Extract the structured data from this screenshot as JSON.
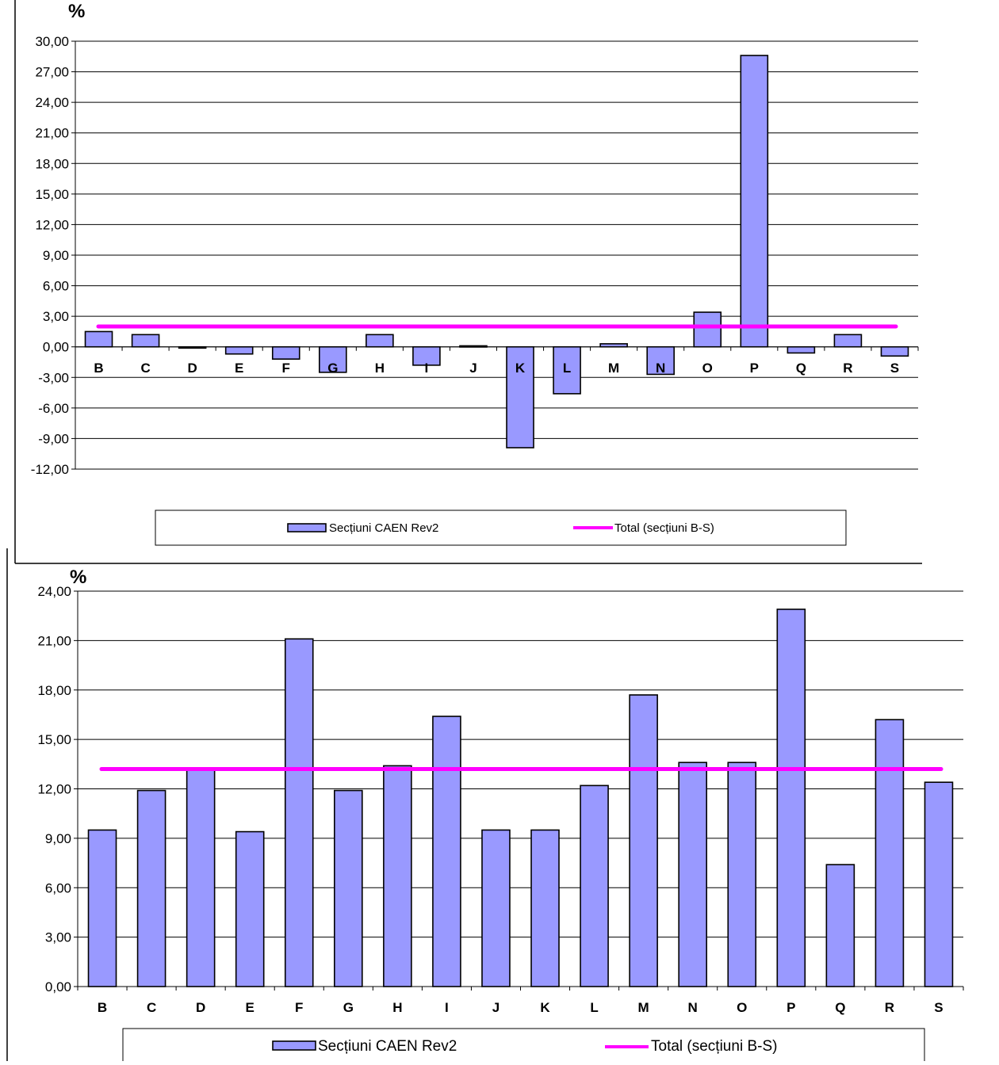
{
  "chart_data": [
    {
      "type": "bar",
      "ylabel": "%",
      "ylim": [
        -12,
        30
      ],
      "ytick_step": 3,
      "yticks": [
        "30,00",
        "27,00",
        "24,00",
        "21,00",
        "18,00",
        "15,00",
        "12,00",
        "9,00",
        "6,00",
        "3,00",
        "0,00",
        "-3,00",
        "-6,00",
        "-9,00",
        "-12,00"
      ],
      "grid": true,
      "legend_position": "bottom",
      "categories": [
        "B",
        "C",
        "D",
        "E",
        "F",
        "G",
        "H",
        "I",
        "J",
        "K",
        "L",
        "M",
        "N",
        "O",
        "P",
        "Q",
        "R",
        "S"
      ],
      "series": [
        {
          "name": "Secțiuni CAEN Rev2",
          "type": "bar",
          "values": [
            1.5,
            1.2,
            -0.1,
            -0.7,
            -1.2,
            -2.5,
            1.2,
            -1.8,
            0.1,
            -9.9,
            -4.6,
            0.3,
            -2.7,
            3.4,
            28.6,
            -0.6,
            1.2,
            -0.9
          ]
        },
        {
          "name": "Total (secțiuni B-S)",
          "type": "line",
          "value": 2.0
        }
      ],
      "colors": {
        "bar": "#9999ff",
        "line": "#ff00ff"
      }
    },
    {
      "type": "bar",
      "ylabel": "%",
      "ylim": [
        0,
        24
      ],
      "ytick_step": 3,
      "yticks": [
        "24,00",
        "21,00",
        "18,00",
        "15,00",
        "12,00",
        "9,00",
        "6,00",
        "3,00",
        "0,00"
      ],
      "grid": true,
      "legend_position": "bottom",
      "categories": [
        "B",
        "C",
        "D",
        "E",
        "F",
        "G",
        "H",
        "I",
        "J",
        "K",
        "L",
        "M",
        "N",
        "O",
        "P",
        "Q",
        "R",
        "S"
      ],
      "series": [
        {
          "name": "Secțiuni CAEN Rev2",
          "type": "bar",
          "values": [
            9.5,
            11.9,
            13.2,
            9.4,
            21.1,
            11.9,
            13.4,
            16.4,
            9.5,
            9.5,
            12.2,
            17.7,
            13.6,
            13.6,
            22.9,
            7.4,
            16.2,
            12.4
          ]
        },
        {
          "name": "Total (secțiuni B-S)",
          "type": "line",
          "value": 13.2
        }
      ],
      "colors": {
        "bar": "#9999ff",
        "line": "#ff00ff"
      }
    }
  ]
}
